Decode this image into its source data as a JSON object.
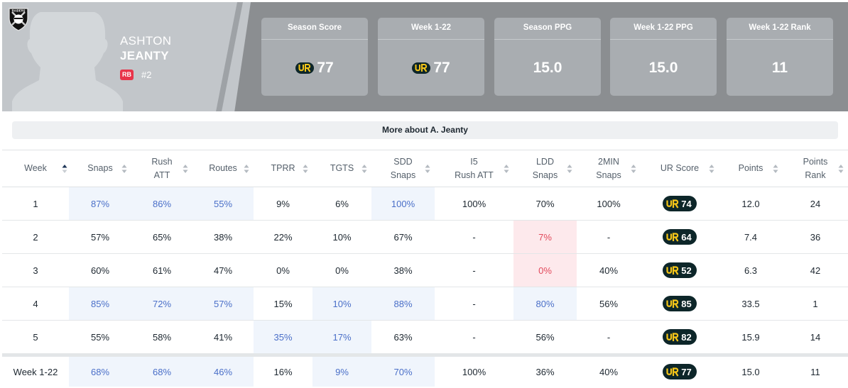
{
  "player": {
    "first_name": "ASHTON",
    "last_name": "JEANTY",
    "position": "RB",
    "jersey": "#2",
    "team_logo": "raiders-shield-logo"
  },
  "stat_cards": [
    {
      "title": "Season Score",
      "value": "77",
      "has_ur_logo": true
    },
    {
      "title": "Week 1-22",
      "value": "77",
      "has_ur_logo": true
    },
    {
      "title": "Season PPG",
      "value": "15.0",
      "has_ur_logo": false
    },
    {
      "title": "Week 1-22 PPG",
      "value": "15.0",
      "has_ur_logo": false
    },
    {
      "title": "Week 1-22 Rank",
      "value": "11",
      "has_ur_logo": false
    }
  ],
  "more_about": "More about A. Jeanty",
  "table": {
    "columns": [
      {
        "line1": "Week",
        "line2": "",
        "sort": "asc"
      },
      {
        "line1": "Snaps",
        "line2": "",
        "sort": "none"
      },
      {
        "line1": "Rush",
        "line2": "ATT",
        "sort": "none"
      },
      {
        "line1": "Routes",
        "line2": "",
        "sort": "none"
      },
      {
        "line1": "TPRR",
        "line2": "",
        "sort": "none"
      },
      {
        "line1": "TGTS",
        "line2": "",
        "sort": "none"
      },
      {
        "line1": "SDD",
        "line2": "Snaps",
        "sort": "none"
      },
      {
        "line1": "I5",
        "line2": "Rush ATT",
        "sort": "none"
      },
      {
        "line1": "LDD",
        "line2": "Snaps",
        "sort": "none"
      },
      {
        "line1": "2MIN",
        "line2": "Snaps",
        "sort": "none"
      },
      {
        "line1": "UR Score",
        "line2": "",
        "sort": "none"
      },
      {
        "line1": "Points",
        "line2": "",
        "sort": "none"
      },
      {
        "line1": "Points",
        "line2": "Rank",
        "sort": "none"
      }
    ],
    "rows": [
      {
        "week": "1",
        "snaps": "87%",
        "rush_att": "86%",
        "routes": "55%",
        "tprr": "9%",
        "tgts": "6%",
        "sdd": "100%",
        "i5": "100%",
        "ldd": "70%",
        "two_min": "100%",
        "ur": "74",
        "points": "12.0",
        "rank": "24",
        "hl": {
          "snaps": "blue",
          "rush_att": "blue",
          "routes": "blue",
          "sdd": "blue"
        }
      },
      {
        "week": "2",
        "snaps": "57%",
        "rush_att": "65%",
        "routes": "38%",
        "tprr": "22%",
        "tgts": "10%",
        "sdd": "67%",
        "i5": "-",
        "ldd": "7%",
        "two_min": "-",
        "ur": "64",
        "points": "7.4",
        "rank": "36",
        "hl": {
          "ldd": "red"
        }
      },
      {
        "week": "3",
        "snaps": "60%",
        "rush_att": "61%",
        "routes": "47%",
        "tprr": "0%",
        "tgts": "0%",
        "sdd": "38%",
        "i5": "-",
        "ldd": "0%",
        "two_min": "40%",
        "ur": "52",
        "points": "6.3",
        "rank": "42",
        "hl": {
          "ldd": "red"
        }
      },
      {
        "week": "4",
        "snaps": "85%",
        "rush_att": "72%",
        "routes": "57%",
        "tprr": "15%",
        "tgts": "10%",
        "sdd": "88%",
        "i5": "-",
        "ldd": "80%",
        "two_min": "56%",
        "ur": "85",
        "points": "33.5",
        "rank": "1",
        "hl": {
          "snaps": "blue",
          "rush_att": "blue",
          "routes": "blue",
          "tgts": "blue",
          "sdd": "blue",
          "ldd": "blue"
        }
      },
      {
        "week": "5",
        "snaps": "55%",
        "rush_att": "58%",
        "routes": "41%",
        "tprr": "35%",
        "tgts": "17%",
        "sdd": "63%",
        "i5": "-",
        "ldd": "56%",
        "two_min": "-",
        "ur": "82",
        "points": "15.9",
        "rank": "14",
        "hl": {
          "tprr": "blue",
          "tgts": "blue"
        }
      }
    ],
    "total": {
      "week": "Week 1-22",
      "snaps": "68%",
      "rush_att": "68%",
      "routes": "46%",
      "tprr": "16%",
      "tgts": "9%",
      "sdd": "70%",
      "i5": "100%",
      "ldd": "36%",
      "two_min": "40%",
      "ur": "77",
      "points": "15.0",
      "rank": "11",
      "hl": {
        "snaps": "blue",
        "rush_att": "blue",
        "routes": "blue",
        "tgts": "blue",
        "sdd": "blue"
      }
    }
  },
  "colors": {
    "header_bg": "#8b8e91",
    "card_bg": "#a9adb1",
    "ur_pill": "#0d2629",
    "ur_logo": "#f5c518",
    "highlight_blue": "#f0f5fc",
    "highlight_red": "#fde9ec"
  }
}
